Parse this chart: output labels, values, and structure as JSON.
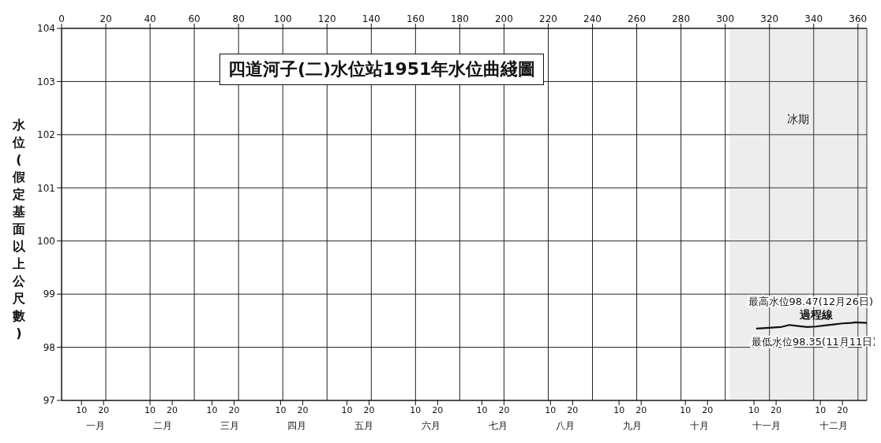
{
  "chart_data": {
    "type": "line",
    "title": "四道河子(二)水位站1951年水位曲綫圖",
    "ylabel": "水位(假定基面以上公尺數)",
    "x": [
      "--11-11",
      "--11-14",
      "--11-18",
      "--11-22",
      "--11-26",
      "--11-30",
      "--12-04",
      "--12-08",
      "--12-12",
      "--12-16",
      "--12-20",
      "--12-24",
      "--12-26",
      "--12-31"
    ],
    "series": [
      {
        "name": "過程線",
        "color": "#111111",
        "values": [
          98.35,
          98.36,
          98.37,
          98.38,
          98.42,
          98.4,
          98.38,
          98.39,
          98.41,
          98.43,
          98.45,
          98.46,
          98.47,
          98.46
        ]
      }
    ],
    "xlim": [
      "--01-01",
      "--12-31"
    ],
    "xticks": [
      {
        "value": "--01-10",
        "label": "10"
      },
      {
        "value": "--01-20",
        "label": "20"
      },
      {
        "value": "--02-10",
        "label": "10"
      },
      {
        "value": "--02-20",
        "label": "20"
      },
      {
        "value": "--03-10",
        "label": "10"
      },
      {
        "value": "--03-20",
        "label": "20"
      },
      {
        "value": "--04-10",
        "label": "10"
      },
      {
        "value": "--04-20",
        "label": "20"
      },
      {
        "value": "--05-10",
        "label": "10"
      },
      {
        "value": "--05-20",
        "label": "20"
      },
      {
        "value": "--06-10",
        "label": "10"
      },
      {
        "value": "--06-20",
        "label": "20"
      },
      {
        "value": "--07-10",
        "label": "10"
      },
      {
        "value": "--07-20",
        "label": "20"
      },
      {
        "value": "--08-10",
        "label": "10"
      },
      {
        "value": "--08-20",
        "label": "20"
      },
      {
        "value": "--09-10",
        "label": "10"
      },
      {
        "value": "--09-20",
        "label": "20"
      },
      {
        "value": "--10-10",
        "label": "10"
      },
      {
        "value": "--10-20",
        "label": "20"
      },
      {
        "value": "--11-10",
        "label": "10"
      },
      {
        "value": "--11-20",
        "label": "20"
      },
      {
        "value": "--12-10",
        "label": "10"
      },
      {
        "value": "--12-20",
        "label": "20"
      }
    ],
    "x2lim": [
      0,
      364
    ],
    "x2ticks": [
      0,
      20,
      40,
      60,
      80,
      100,
      120,
      140,
      160,
      180,
      200,
      220,
      240,
      260,
      280,
      300,
      320,
      340,
      360
    ],
    "ylim": [
      97,
      104
    ],
    "yticks": [
      97,
      98,
      99,
      100,
      101,
      102,
      103,
      104
    ],
    "grid": true,
    "marker": "none",
    "line_style": "solid",
    "bands": [
      {
        "axis": "x",
        "from": "--10-30",
        "to": "--12-31",
        "label": "冰期",
        "color": "#999999"
      }
    ],
    "annotations": [
      "一月",
      "二月",
      "三月",
      "四月",
      "五月",
      "六月",
      "七月",
      "八月",
      "九月",
      "十月",
      "十一月",
      "十二月",
      {
        "text": "最高水位98.47(12月26日)",
        "x": "--12-26",
        "y": 98.47
      },
      {
        "text": "最低水位98.35(11月11日)",
        "x": "--11-11",
        "y": 98.35
      }
    ]
  }
}
